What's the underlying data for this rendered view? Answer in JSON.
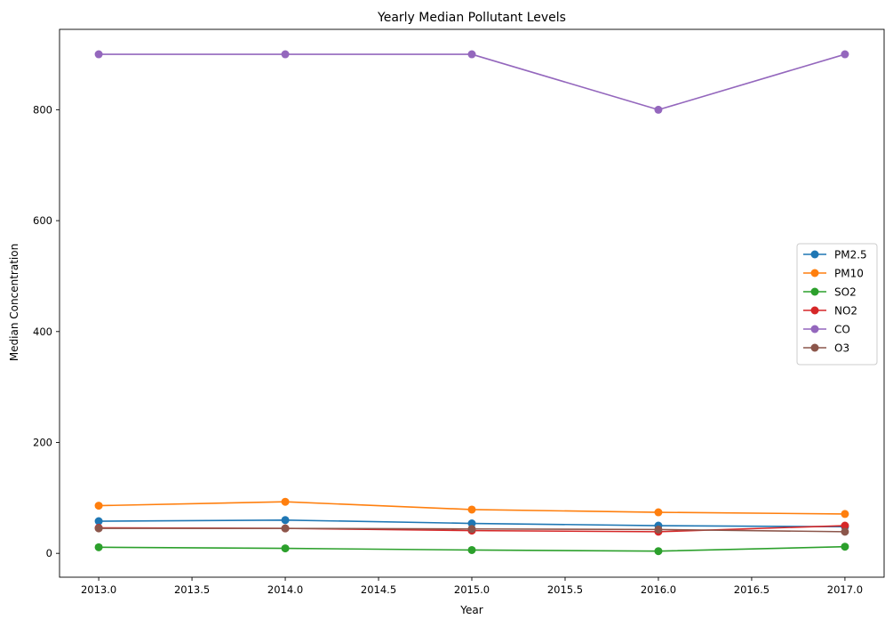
{
  "chart_data": {
    "type": "line",
    "title": "Yearly Median Pollutant Levels",
    "xlabel": "Year",
    "ylabel": "Median Concentration",
    "x": [
      2013,
      2014,
      2015,
      2016,
      2017
    ],
    "xlim": [
      2012.79,
      2017.21
    ],
    "ylim": [
      -43,
      945
    ],
    "xticks": [
      2013.0,
      2013.5,
      2014.0,
      2014.5,
      2015.0,
      2015.5,
      2016.0,
      2016.5,
      2017.0
    ],
    "xtick_labels": [
      "2013.0",
      "2013.5",
      "2014.0",
      "2014.5",
      "2015.0",
      "2015.5",
      "2016.0",
      "2016.5",
      "2017.0"
    ],
    "yticks": [
      0,
      200,
      400,
      600,
      800
    ],
    "ytick_labels": [
      "0",
      "200",
      "400",
      "600",
      "800"
    ],
    "grid": false,
    "legend_position": "center-right",
    "series": [
      {
        "name": "PM2.5",
        "color": "#1f77b4",
        "marker": "circle",
        "values": [
          58,
          60,
          54,
          50,
          48
        ]
      },
      {
        "name": "PM10",
        "color": "#ff7f0e",
        "marker": "circle",
        "values": [
          86,
          93,
          79,
          74,
          71
        ]
      },
      {
        "name": "SO2",
        "color": "#2ca02c",
        "marker": "circle",
        "values": [
          11,
          9,
          6,
          4,
          12
        ]
      },
      {
        "name": "NO2",
        "color": "#d62728",
        "marker": "circle",
        "values": [
          46,
          45,
          41,
          39,
          50
        ]
      },
      {
        "name": "CO",
        "color": "#9467bd",
        "marker": "circle",
        "values": [
          900,
          900,
          900,
          800,
          900
        ]
      },
      {
        "name": "O3",
        "color": "#8c564b",
        "marker": "circle",
        "values": [
          45,
          45,
          44,
          43,
          39
        ]
      }
    ]
  }
}
